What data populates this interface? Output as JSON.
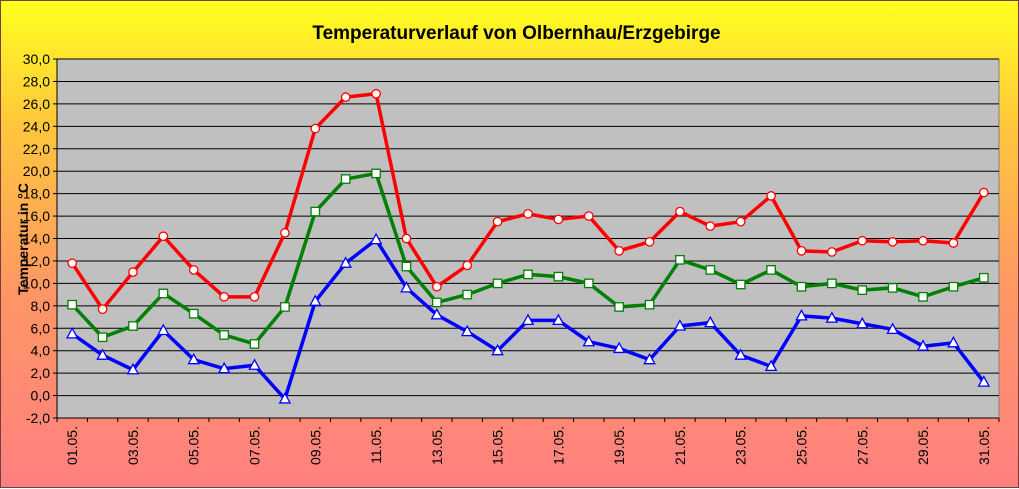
{
  "chart_data": {
    "type": "line",
    "title": "Temperaturverlauf von Olbernhau/Erzgebirge",
    "ylabel": "Temperatur in °C",
    "xlabel": "",
    "ylim": [
      -2,
      30
    ],
    "yticks": [
      "-2,0",
      "0,0",
      "2,0",
      "4,0",
      "6,0",
      "8,0",
      "10,0",
      "12,0",
      "14,0",
      "16,0",
      "18,0",
      "20,0",
      "22,0",
      "24,0",
      "26,0",
      "28,0",
      "30,0"
    ],
    "categories": [
      "01.05.",
      "02.05.",
      "03.05.",
      "04.05.",
      "05.05.",
      "06.05.",
      "07.05.",
      "08.05.",
      "09.05.",
      "10.05.",
      "11.05.",
      "12.05.",
      "13.05.",
      "14.05.",
      "15.05.",
      "16.05.",
      "17.05.",
      "18.05.",
      "19.05.",
      "20.05.",
      "21.05.",
      "22.05.",
      "23.05.",
      "24.05.",
      "25.05.",
      "26.05.",
      "27.05.",
      "28.05.",
      "29.05.",
      "30.05.",
      "31.05."
    ],
    "xtick_labels": [
      "01.05.",
      "03.05.",
      "05.05.",
      "07.05.",
      "09.05.",
      "11.05.",
      "13.05.",
      "15.05.",
      "17.05.",
      "19.05.",
      "21.05.",
      "23.05.",
      "25.05.",
      "27.05.",
      "29.05.",
      "31.05."
    ],
    "grid": true,
    "plot_background": "#c0c0c0",
    "series": [
      {
        "color": "#ff0000",
        "marker": "circle",
        "values": [
          11.8,
          7.7,
          11.0,
          14.2,
          11.2,
          8.8,
          8.8,
          14.5,
          23.8,
          26.6,
          26.9,
          14.0,
          9.7,
          11.6,
          15.5,
          16.2,
          15.7,
          16.0,
          12.9,
          13.7,
          16.4,
          15.1,
          15.5,
          17.8,
          12.9,
          12.8,
          13.8,
          13.7,
          13.8,
          13.6,
          18.1
        ]
      },
      {
        "color": "#008000",
        "marker": "square",
        "values": [
          8.1,
          5.2,
          6.2,
          9.1,
          7.3,
          5.4,
          4.6,
          7.9,
          16.4,
          19.3,
          19.8,
          11.5,
          8.3,
          9.0,
          10.0,
          10.8,
          10.6,
          10.0,
          7.9,
          8.1,
          12.1,
          11.2,
          9.9,
          11.2,
          9.7,
          10.0,
          9.4,
          9.6,
          8.8,
          9.7,
          10.5
        ]
      },
      {
        "color": "#0000ff",
        "marker": "triangle",
        "values": [
          5.5,
          3.6,
          2.3,
          5.8,
          3.2,
          2.4,
          2.7,
          -0.3,
          8.4,
          11.8,
          13.9,
          9.6,
          7.2,
          5.7,
          4.0,
          6.7,
          6.7,
          4.8,
          4.2,
          3.2,
          6.2,
          6.5,
          3.6,
          2.6,
          7.1,
          6.9,
          6.4,
          5.9,
          4.4,
          4.7,
          1.2
        ]
      }
    ]
  }
}
